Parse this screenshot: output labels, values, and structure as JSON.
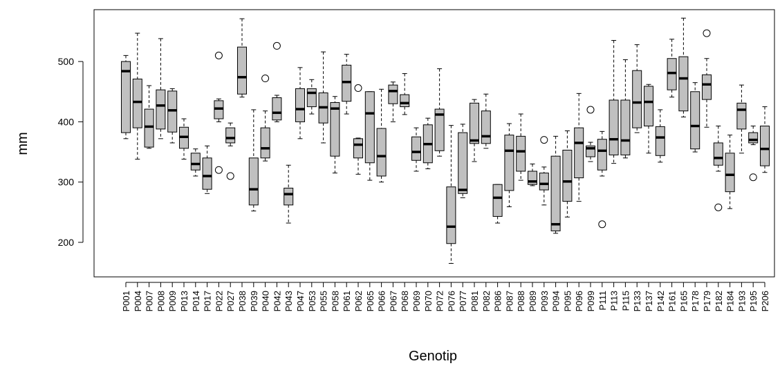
{
  "chart_data": {
    "type": "boxplot",
    "title": "",
    "xlabel": "Genotip",
    "ylabel": "mm",
    "ylim": [
      140,
      580
    ],
    "yticks": [
      200,
      300,
      400,
      500
    ],
    "box_fill": "#c0c0c0",
    "grid": false,
    "categories": [
      "P001",
      "P004",
      "P007",
      "P008",
      "P009",
      "P013",
      "P014",
      "P017",
      "P022",
      "P027",
      "P038",
      "P039",
      "P040",
      "P042",
      "P043",
      "P047",
      "P053",
      "P055",
      "P058",
      "P061",
      "P062",
      "P065",
      "P066",
      "P067",
      "P068",
      "P069",
      "P070",
      "P072",
      "P076",
      "P077",
      "P081",
      "P082",
      "P086",
      "P087",
      "P088",
      "P089",
      "P093",
      "P094",
      "P095",
      "P096",
      "P099",
      "P111",
      "P113",
      "P115",
      "P133",
      "P137",
      "P142",
      "P161",
      "P165",
      "P178",
      "P179",
      "P182",
      "P184",
      "P193",
      "P195",
      "P206"
    ],
    "boxes": [
      {
        "min": 372,
        "q1": 382,
        "median": 484,
        "q3": 500,
        "max": 510,
        "outliers": []
      },
      {
        "min": 338,
        "q1": 390,
        "median": 433,
        "q3": 471,
        "max": 547,
        "outliers": []
      },
      {
        "min": 356,
        "q1": 358,
        "median": 392,
        "q3": 421,
        "max": 460,
        "outliers": []
      },
      {
        "min": 372,
        "q1": 388,
        "median": 427,
        "q3": 453,
        "max": 538,
        "outliers": []
      },
      {
        "min": 365,
        "q1": 383,
        "median": 419,
        "q3": 451,
        "max": 455,
        "outliers": []
      },
      {
        "min": 338,
        "q1": 356,
        "median": 375,
        "q3": 391,
        "max": 405,
        "outliers": []
      },
      {
        "min": 310,
        "q1": 320,
        "median": 330,
        "q3": 348,
        "max": 355,
        "outliers": []
      },
      {
        "min": 281,
        "q1": 288,
        "median": 310,
        "q3": 340,
        "max": 360,
        "outliers": []
      },
      {
        "min": 400,
        "q1": 405,
        "median": 422,
        "q3": 435,
        "max": 438,
        "outliers": [
          510,
          320
        ]
      },
      {
        "min": 360,
        "q1": 365,
        "median": 373,
        "q3": 390,
        "max": 398,
        "outliers": [
          310
        ]
      },
      {
        "min": 441,
        "q1": 446,
        "median": 474,
        "q3": 524,
        "max": 571,
        "outliers": []
      },
      {
        "min": 252,
        "q1": 262,
        "median": 288,
        "q3": 340,
        "max": 420,
        "outliers": []
      },
      {
        "min": 335,
        "q1": 340,
        "median": 356,
        "q3": 390,
        "max": 418,
        "outliers": [
          472
        ]
      },
      {
        "min": 400,
        "q1": 403,
        "median": 415,
        "q3": 440,
        "max": 444,
        "outliers": [
          526
        ]
      },
      {
        "min": 232,
        "q1": 262,
        "median": 280,
        "q3": 290,
        "max": 328,
        "outliers": []
      },
      {
        "min": 372,
        "q1": 400,
        "median": 421,
        "q3": 455,
        "max": 490,
        "outliers": []
      },
      {
        "min": 413,
        "q1": 425,
        "median": 448,
        "q3": 455,
        "max": 470,
        "outliers": []
      },
      {
        "min": 365,
        "q1": 398,
        "median": 424,
        "q3": 448,
        "max": 516,
        "outliers": []
      },
      {
        "min": 315,
        "q1": 343,
        "median": 422,
        "q3": 432,
        "max": 442,
        "outliers": []
      },
      {
        "min": 413,
        "q1": 434,
        "median": 466,
        "q3": 494,
        "max": 512,
        "outliers": []
      },
      {
        "min": 313,
        "q1": 340,
        "median": 362,
        "q3": 372,
        "max": 373,
        "outliers": [
          456
        ]
      },
      {
        "min": 303,
        "q1": 332,
        "median": 414,
        "q3": 450,
        "max": 450,
        "outliers": []
      },
      {
        "min": 300,
        "q1": 310,
        "median": 343,
        "q3": 389,
        "max": 454,
        "outliers": []
      },
      {
        "min": 400,
        "q1": 430,
        "median": 451,
        "q3": 461,
        "max": 466,
        "outliers": []
      },
      {
        "min": 412,
        "q1": 425,
        "median": 431,
        "q3": 445,
        "max": 480,
        "outliers": []
      },
      {
        "min": 318,
        "q1": 336,
        "median": 350,
        "q3": 375,
        "max": 390,
        "outliers": []
      },
      {
        "min": 322,
        "q1": 332,
        "median": 363,
        "q3": 395,
        "max": 406,
        "outliers": []
      },
      {
        "min": 343,
        "q1": 352,
        "median": 412,
        "q3": 421,
        "max": 488,
        "outliers": []
      },
      {
        "min": 165,
        "q1": 198,
        "median": 226,
        "q3": 292,
        "max": 394,
        "outliers": []
      },
      {
        "min": 274,
        "q1": 281,
        "median": 287,
        "q3": 382,
        "max": 396,
        "outliers": []
      },
      {
        "min": 334,
        "q1": 364,
        "median": 369,
        "q3": 431,
        "max": 437,
        "outliers": []
      },
      {
        "min": 356,
        "q1": 364,
        "median": 376,
        "q3": 418,
        "max": 446,
        "outliers": []
      },
      {
        "min": 232,
        "q1": 243,
        "median": 274,
        "q3": 296,
        "max": 296,
        "outliers": []
      },
      {
        "min": 259,
        "q1": 286,
        "median": 352,
        "q3": 378,
        "max": 397,
        "outliers": []
      },
      {
        "min": 303,
        "q1": 318,
        "median": 351,
        "q3": 376,
        "max": 413,
        "outliers": []
      },
      {
        "min": 294,
        "q1": 296,
        "median": 301,
        "q3": 318,
        "max": 330,
        "outliers": []
      },
      {
        "min": 262,
        "q1": 287,
        "median": 297,
        "q3": 315,
        "max": 325,
        "outliers": [
          370
        ]
      },
      {
        "min": 215,
        "q1": 219,
        "median": 230,
        "q3": 343,
        "max": 376,
        "outliers": []
      },
      {
        "min": 242,
        "q1": 268,
        "median": 301,
        "q3": 353,
        "max": 385,
        "outliers": []
      },
      {
        "min": 268,
        "q1": 307,
        "median": 365,
        "q3": 390,
        "max": 447,
        "outliers": []
      },
      {
        "min": 334,
        "q1": 342,
        "median": 356,
        "q3": 360,
        "max": 366,
        "outliers": [
          420
        ]
      },
      {
        "min": 310,
        "q1": 320,
        "median": 352,
        "q3": 371,
        "max": 384,
        "outliers": [
          230
        ]
      },
      {
        "min": 331,
        "q1": 345,
        "median": 371,
        "q3": 436,
        "max": 535,
        "outliers": []
      },
      {
        "min": 340,
        "q1": 345,
        "median": 369,
        "q3": 436,
        "max": 503,
        "outliers": []
      },
      {
        "min": 382,
        "q1": 390,
        "median": 432,
        "q3": 485,
        "max": 528,
        "outliers": []
      },
      {
        "min": 348,
        "q1": 393,
        "median": 433,
        "q3": 459,
        "max": 462,
        "outliers": []
      },
      {
        "min": 333,
        "q1": 344,
        "median": 374,
        "q3": 392,
        "max": 420,
        "outliers": []
      },
      {
        "min": 441,
        "q1": 453,
        "median": 481,
        "q3": 505,
        "max": 537,
        "outliers": []
      },
      {
        "min": 408,
        "q1": 418,
        "median": 472,
        "q3": 508,
        "max": 572,
        "outliers": []
      },
      {
        "min": 350,
        "q1": 355,
        "median": 393,
        "q3": 450,
        "max": 465,
        "outliers": []
      },
      {
        "min": 391,
        "q1": 437,
        "median": 462,
        "q3": 478,
        "max": 505,
        "outliers": [
          547
        ]
      },
      {
        "min": 318,
        "q1": 328,
        "median": 340,
        "q3": 365,
        "max": 393,
        "outliers": [
          258
        ]
      },
      {
        "min": 256,
        "q1": 284,
        "median": 312,
        "q3": 348,
        "max": 378,
        "outliers": []
      },
      {
        "min": 348,
        "q1": 388,
        "median": 420,
        "q3": 431,
        "max": 461,
        "outliers": []
      },
      {
        "min": 362,
        "q1": 365,
        "median": 370,
        "q3": 382,
        "max": 393,
        "outliers": [
          308
        ]
      },
      {
        "min": 316,
        "q1": 327,
        "median": 355,
        "q3": 393,
        "max": 425,
        "outliers": []
      }
    ]
  }
}
